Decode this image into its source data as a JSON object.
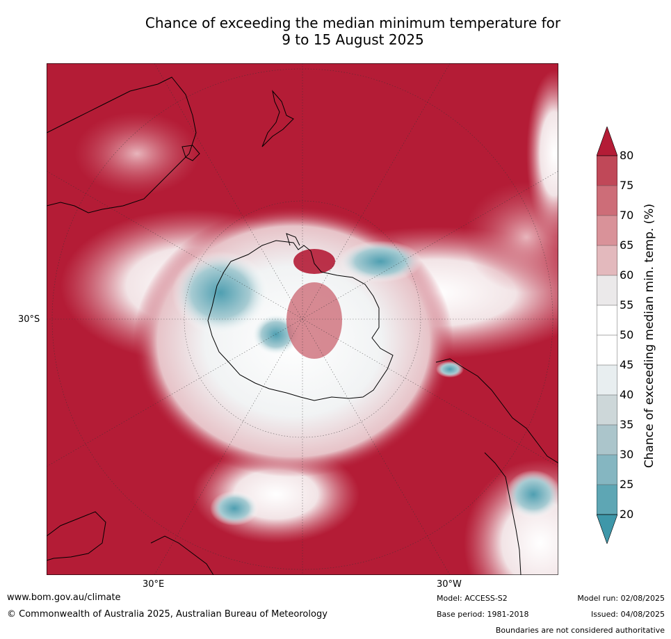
{
  "title": {
    "line1": "Chance of exceeding the median minimum temperature for",
    "line2": "9 to 15 August 2025"
  },
  "map": {
    "lat_label": "30°S",
    "lon_labels": [
      "30°E",
      "30°W"
    ],
    "colors": {
      "ocean_high": "#b41c36",
      "neutral": "#ffffff",
      "land_outline": "#000000"
    }
  },
  "colorbar": {
    "label": "Chance of exceeding median min. temp. (%)",
    "ticks": [
      "80",
      "75",
      "70",
      "65",
      "60",
      "55",
      "50",
      "45",
      "40",
      "35",
      "30",
      "25",
      "20"
    ],
    "colors": [
      "#b41c36",
      "#c04858",
      "#cd6d78",
      "#d99299",
      "#e3b9bd",
      "#ebe9ea",
      "#ffffff",
      "#ffffff",
      "#e8eef0",
      "#cdd7d9",
      "#abc5cb",
      "#85b6c1",
      "#5ea6b4",
      "#3e97a9"
    ]
  },
  "footer": {
    "url": "www.bom.gov.au/climate",
    "copyright": "© Commonwealth of Australia 2025, Australian Bureau of Meteorology",
    "model": "Model: ACCESS-S2",
    "base_period": "Base period: 1981-2018",
    "model_run": "Model run: 02/08/2025",
    "issued": "Issued: 04/08/2025",
    "boundaries": "Boundaries are not considered authoritative"
  }
}
